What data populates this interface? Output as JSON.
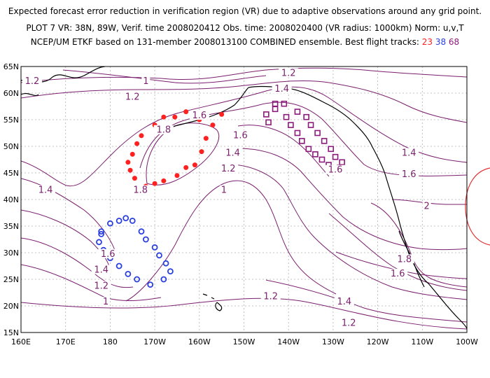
{
  "header": {
    "line1": "Expected forecast error reduction in verification region (VR) due to adaptive observations around any grid point.",
    "line2": "PLOT 7 VR: 38N, 89W, Verif. time 2008020412 Obs. time: 2008020400 (VR radius: 1000km) Norm: u,v,T",
    "line3_prefix": "NCEP/UM ETKF based on 131-member 2008013100 COMBINED ensemble.  Best flight tracks:",
    "track_a": "23",
    "track_b": "38",
    "track_c": "68"
  },
  "axes": {
    "lat_labels": [
      "65N",
      "60N",
      "55N",
      "50N",
      "45N",
      "40N",
      "35N",
      "30N",
      "25N",
      "20N",
      "15N"
    ],
    "lon_labels": [
      "160E",
      "170E",
      "180",
      "170W",
      "160W",
      "150W",
      "140W",
      "130W",
      "120W",
      "110W",
      "100W"
    ]
  },
  "colors": {
    "contour": "#7a1f6e",
    "track_a": "#ff2020",
    "track_b": "#2a3fe0",
    "track_c": "#8b1a7a",
    "vr_circle": "#e03030",
    "coast": "#000000"
  },
  "contour_labels": [
    {
      "text": "1.2",
      "lat": 62.0,
      "lon": 162.5
    },
    {
      "text": "1",
      "lat": 62.0,
      "lon": -172.0
    },
    {
      "text": "1.2",
      "lat": 59.0,
      "lon": -175.0
    },
    {
      "text": "1.2",
      "lat": 63.5,
      "lon": -140.0
    },
    {
      "text": "1.4",
      "lat": 60.5,
      "lon": -141.5
    },
    {
      "text": "1.6",
      "lat": 55.5,
      "lon": -160.0
    },
    {
      "text": "1.8",
      "lat": 52.8,
      "lon": -168.0
    },
    {
      "text": "1.6",
      "lat": 51.8,
      "lon": -150.8
    },
    {
      "text": "1.4",
      "lat": 48.5,
      "lon": -152.5
    },
    {
      "text": "1.2",
      "lat": 45.5,
      "lon": -153.5
    },
    {
      "text": "1",
      "lat": 41.5,
      "lon": -154.5
    },
    {
      "text": "1.4",
      "lat": 41.5,
      "lon": 165.5
    },
    {
      "text": "1.8",
      "lat": 41.5,
      "lon": -173.2
    },
    {
      "text": "1.6",
      "lat": 45.3,
      "lon": -129.5
    },
    {
      "text": "1.4",
      "lat": 48.5,
      "lon": -113.0
    },
    {
      "text": "1.6",
      "lat": 44.5,
      "lon": -113.0
    },
    {
      "text": "2",
      "lat": 38.5,
      "lon": -109.0
    },
    {
      "text": "1.6",
      "lat": 29.5,
      "lon": -180.5
    },
    {
      "text": "1.4",
      "lat": 26.5,
      "lon": -182.0
    },
    {
      "text": "1.2",
      "lat": 23.5,
      "lon": -182.0
    },
    {
      "text": "1",
      "lat": 20.5,
      "lon": -181.0
    },
    {
      "text": "1.2",
      "lat": 21.5,
      "lon": -144.0
    },
    {
      "text": "1.8",
      "lat": 28.5,
      "lon": -114.0
    },
    {
      "text": "1.6",
      "lat": 25.8,
      "lon": -115.5
    },
    {
      "text": "1.4",
      "lat": 20.5,
      "lon": -127.5
    },
    {
      "text": "1.2",
      "lat": 16.5,
      "lon": -126.5
    }
  ],
  "tracks": {
    "red": [
      [
        47,
        -176
      ],
      [
        48.5,
        -175
      ],
      [
        50.5,
        -174
      ],
      [
        52,
        -173
      ],
      [
        54,
        -170
      ],
      [
        55.5,
        -168
      ],
      [
        55.5,
        -165.5
      ],
      [
        56.5,
        -163
      ],
      [
        55,
        -160
      ],
      [
        56,
        -155
      ],
      [
        54,
        -157
      ],
      [
        51.5,
        -158.5
      ],
      [
        49,
        -159.5
      ],
      [
        46.5,
        -161
      ],
      [
        46,
        -163
      ],
      [
        44.5,
        -165
      ],
      [
        43.5,
        -168
      ],
      [
        43,
        -170
      ],
      [
        42.5,
        -172
      ],
      [
        44,
        -174.5
      ],
      [
        45.5,
        -175.5
      ]
    ],
    "blue": [
      [
        34,
        -182
      ],
      [
        35.5,
        -180
      ],
      [
        36,
        -178
      ],
      [
        36.5,
        -176.5
      ],
      [
        36,
        -175
      ],
      [
        34,
        -173
      ],
      [
        32.5,
        -172
      ],
      [
        31,
        -170
      ],
      [
        29.5,
        -169
      ],
      [
        28,
        -167.5
      ],
      [
        26.5,
        -166.5
      ],
      [
        25,
        -168
      ],
      [
        24,
        -171
      ],
      [
        25,
        -174
      ],
      [
        26,
        -176
      ],
      [
        27.5,
        -178
      ],
      [
        29,
        -180
      ],
      [
        30.5,
        -181.5
      ],
      [
        32,
        -182.5
      ],
      [
        33.5,
        -182
      ]
    ],
    "purple": [
      [
        58,
        -143
      ],
      [
        58,
        -141
      ],
      [
        56.5,
        -138
      ],
      [
        55.5,
        -136
      ],
      [
        54,
        -135
      ],
      [
        52.5,
        -133.5
      ],
      [
        51,
        -132
      ],
      [
        49.5,
        -130.5
      ],
      [
        48,
        -129.5
      ],
      [
        47,
        -128
      ],
      [
        46,
        -128.5
      ],
      [
        45.5,
        -129.5
      ],
      [
        46.5,
        -131
      ],
      [
        47.5,
        -132.5
      ],
      [
        48.5,
        -134
      ],
      [
        49.5,
        -135.5
      ],
      [
        51,
        -137
      ],
      [
        52.5,
        -138
      ],
      [
        54,
        -139.5
      ],
      [
        55.5,
        -140.5
      ],
      [
        57,
        -143
      ],
      [
        56,
        -145
      ],
      [
        54.5,
        -144.5
      ]
    ]
  }
}
